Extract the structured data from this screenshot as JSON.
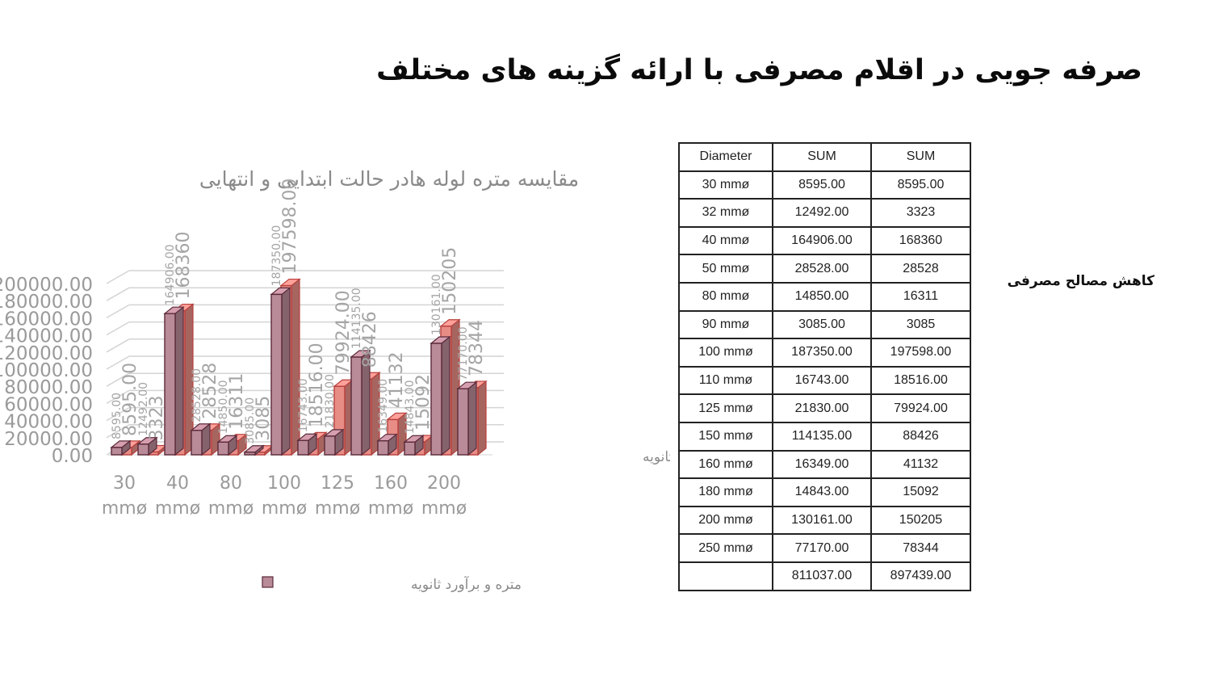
{
  "slide": {
    "title": "صرفه جویی در اقلام مصرفی با ارائه گزینه های مختلف",
    "side_note": "کاهش مصالح مصرفی"
  },
  "colors": {
    "series_1": "#b98a98",
    "series_1_edge": "#5b2a3a",
    "series_2": "#e88c86",
    "series_2_edge": "#b8403c",
    "axis_text": "#9a9a9a",
    "grid": "#d4d4d4"
  },
  "chart_data": {
    "type": "bar",
    "three_d": true,
    "title": "مقایسه متره لوله هادر حالت ابتدایی و انتهایی",
    "categories": [
      "30 mmø",
      "32 mmø",
      "40 mmø",
      "50 mmø",
      "80 mmø",
      "90 mmø",
      "100 mmø",
      "110 mmø",
      "125 mmø",
      "150 mmø",
      "160 mmø",
      "180 mmø",
      "200 mmø",
      "250 mmø"
    ],
    "x_tick_labels": [
      "30 mmø",
      "40 mmø",
      "80 mmø",
      "100 mmø",
      "125 mmø",
      "160 mmø",
      "200 mmø"
    ],
    "y_tick_labels": [
      "0.00",
      "20000.00",
      "40000.00",
      "60000.00",
      "80000.00",
      "100000.00",
      "120000.00",
      "140000.00",
      "160000.00",
      "180000.00",
      "200000.00"
    ],
    "ylim": [
      0,
      200000
    ],
    "grid": true,
    "series": [
      {
        "name": "متره و برآورد ثانویه",
        "values": [
          8595,
          12492,
          164906,
          28528,
          14850,
          3085,
          187350,
          16743,
          21830,
          114135,
          16349,
          14843,
          130161,
          77170
        ],
        "data_labels": [
          "8595.00",
          "12492.00",
          "164906.00",
          "28528.00",
          "14850.00",
          "3085.00",
          "187350.00",
          "16743.00",
          "21830.00",
          "114135.00",
          "16349.00",
          "14843.00",
          "130161.00",
          "77170.00"
        ]
      },
      {
        "name": "متره و برآورد ثانویه",
        "values": [
          8595,
          3323,
          168360,
          28528,
          16311,
          3085,
          197598,
          18516,
          79924,
          88426,
          41132,
          15092,
          150205,
          78344
        ],
        "data_labels": [
          "8595.00",
          "3323",
          "168360",
          "28528",
          "16311",
          "3085",
          "197598.00",
          "18516.00",
          "79924.00",
          "88426",
          "41132",
          "15092",
          "150205",
          "78344"
        ]
      }
    ],
    "legend": {
      "placement": "bottom",
      "entries": [
        "متره و برآورد ثانویه"
      ]
    }
  },
  "table": {
    "headers": [
      "Diameter",
      "SUM",
      "SUM"
    ],
    "rows": [
      [
        "30 mmø",
        "8595.00",
        "8595.00"
      ],
      [
        "32 mmø",
        "12492.00",
        "3323"
      ],
      [
        "40 mmø",
        "164906.00",
        "168360"
      ],
      [
        "50 mmø",
        "28528.00",
        "28528"
      ],
      [
        "80 mmø",
        "14850.00",
        "16311"
      ],
      [
        "90 mmø",
        "3085.00",
        "3085"
      ],
      [
        "100 mmø",
        "187350.00",
        "197598.00"
      ],
      [
        "110 mmø",
        "16743.00",
        "18516.00"
      ],
      [
        "125 mmø",
        "21830.00",
        "79924.00"
      ],
      [
        "150 mmø",
        "114135.00",
        "88426"
      ],
      [
        "160 mmø",
        "16349.00",
        "41132"
      ],
      [
        "180 mmø",
        "14843.00",
        "15092"
      ],
      [
        "200 mmø",
        "130161.00",
        "150205"
      ],
      [
        "250 mmø",
        "77170.00",
        "78344"
      ],
      [
        "",
        "811037.00",
        "897439.00"
      ]
    ]
  }
}
